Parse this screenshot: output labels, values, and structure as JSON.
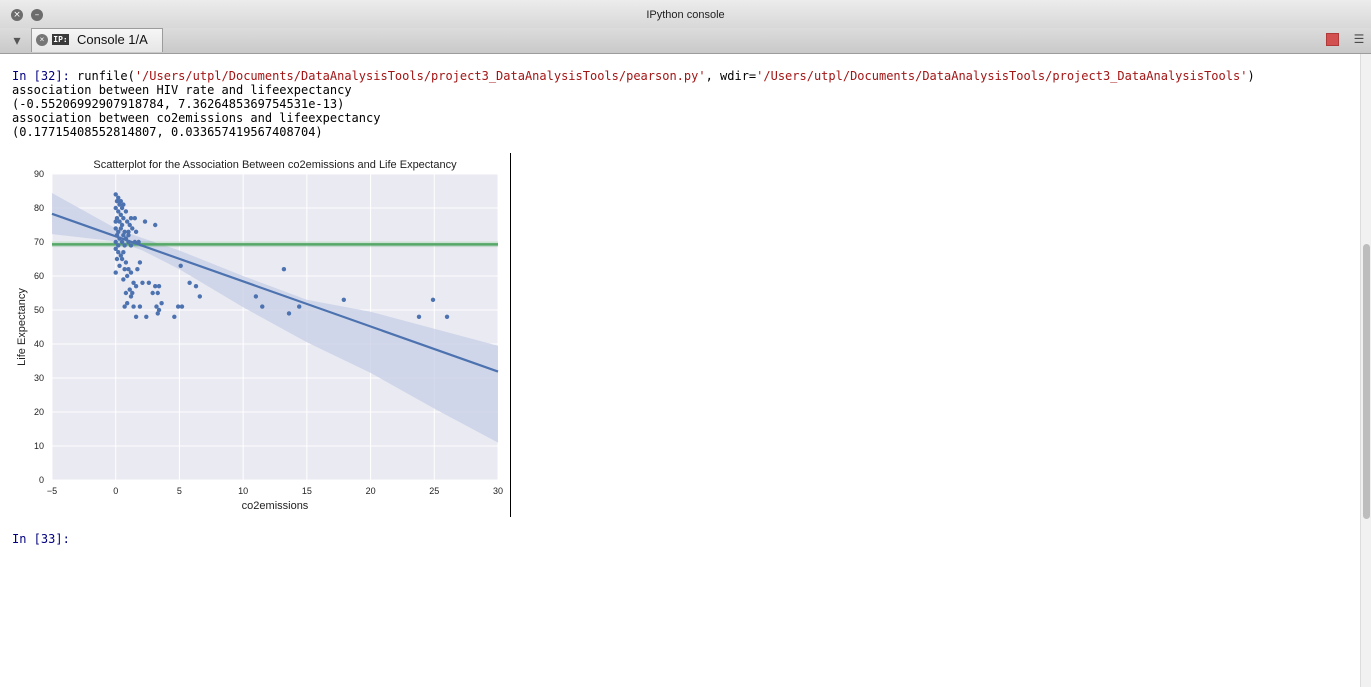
{
  "window": {
    "title": "IPython console",
    "close_glyph": "×",
    "minimize_glyph": "–"
  },
  "tabbar": {
    "options_glyph": "▾",
    "tab_label": "Console 1/A",
    "tab_icon_text": "IP:",
    "tab_close_glyph": "×",
    "menu_glyph": "☰"
  },
  "console": {
    "in32_prompt": "In [32]:",
    "in32_code_prefix": " runfile(",
    "in32_path": "'/Users/utpl/Documents/DataAnalysisTools/project3_DataAnalysisTools/pearson.py'",
    "in32_wdir_label": ", wdir=",
    "in32_wdir": "'/Users/utpl/Documents/DataAnalysisTools/project3_DataAnalysisTools'",
    "in32_close": ")",
    "out_line1": "association between HIV rate and lifeexpectancy",
    "out_line2": "(-0.55206992907918784, 7.3626485369754531e-13)",
    "out_line3": "association between co2emissions and lifeexpectancy",
    "out_line4": "(0.17715408552814807, 0.033657419567408704)",
    "in33_prompt": "In [33]:"
  },
  "colors": {
    "plot_bg": "#eaeaf2",
    "points": "#4c72b0",
    "regression": "#4c72b0",
    "band": "#c7cfe6",
    "mean_line": "#55a868",
    "prompt": "#000080",
    "string": "#a31515",
    "stop_button": "#d25050"
  },
  "chart_data": {
    "type": "scatter",
    "title": "Scatterplot for the Association Between co2emissions and Life Expectancy",
    "xlabel": "co2emissions",
    "ylabel": "Life Expectancy",
    "xlim": [
      -5,
      30
    ],
    "ylim": [
      0,
      90
    ],
    "xticks": [
      -5,
      0,
      5,
      10,
      15,
      20,
      25,
      30
    ],
    "xtick_labels": [
      "−5",
      "0",
      "5",
      "10",
      "15",
      "20",
      "25",
      "30"
    ],
    "yticks": [
      0,
      10,
      20,
      30,
      40,
      50,
      60,
      70,
      80,
      90
    ],
    "ytick_labels": [
      "0",
      "10",
      "20",
      "30",
      "40",
      "50",
      "60",
      "70",
      "80",
      "90"
    ],
    "grid": true,
    "regression_line": {
      "x": [
        -5,
        30
      ],
      "y": [
        78.3,
        31.9
      ]
    },
    "confidence_band": {
      "x": [
        -5,
        0,
        2,
        5,
        10,
        15,
        20,
        25,
        30
      ],
      "upper": [
        84.4,
        74.0,
        71.3,
        67.5,
        60.0,
        53.0,
        49.5,
        44.5,
        39.5
      ],
      "lower": [
        72.3,
        70.2,
        67.7,
        62.0,
        50.8,
        40.5,
        31.5,
        21.0,
        11.0
      ]
    },
    "horizontal_line": {
      "y": 69.3,
      "band": [
        68.5,
        70.2
      ]
    },
    "points": [
      [
        0.0,
        84
      ],
      [
        0.1,
        82
      ],
      [
        0.2,
        83
      ],
      [
        0.3,
        81
      ],
      [
        0.4,
        82
      ],
      [
        0.5,
        80
      ],
      [
        0.6,
        81
      ],
      [
        0.0,
        80
      ],
      [
        0.2,
        79
      ],
      [
        0.4,
        78
      ],
      [
        0.1,
        77
      ],
      [
        0.3,
        76
      ],
      [
        0.6,
        77
      ],
      [
        0.8,
        79
      ],
      [
        0.0,
        76
      ],
      [
        0.5,
        75
      ],
      [
        0.9,
        76
      ],
      [
        1.1,
        75
      ],
      [
        1.5,
        77
      ],
      [
        1.2,
        77
      ],
      [
        0.0,
        74
      ],
      [
        0.2,
        73
      ],
      [
        0.4,
        74
      ],
      [
        0.7,
        73
      ],
      [
        1.0,
        73
      ],
      [
        1.3,
        74
      ],
      [
        1.6,
        73
      ],
      [
        0.1,
        72
      ],
      [
        0.3,
        71
      ],
      [
        0.6,
        72
      ],
      [
        0.8,
        71
      ],
      [
        1.0,
        72
      ],
      [
        0.0,
        70
      ],
      [
        0.2,
        69
      ],
      [
        0.5,
        70
      ],
      [
        0.7,
        69
      ],
      [
        1.0,
        70
      ],
      [
        1.2,
        69
      ],
      [
        1.5,
        70
      ],
      [
        1.8,
        70
      ],
      [
        0.0,
        68
      ],
      [
        0.2,
        67
      ],
      [
        0.4,
        66
      ],
      [
        0.6,
        67
      ],
      [
        0.1,
        65
      ],
      [
        0.5,
        65
      ],
      [
        0.8,
        64
      ],
      [
        0.3,
        63
      ],
      [
        0.7,
        62
      ],
      [
        1.0,
        62
      ],
      [
        0.0,
        61
      ],
      [
        1.2,
        61
      ],
      [
        1.7,
        62
      ],
      [
        1.9,
        64
      ],
      [
        0.6,
        59
      ],
      [
        0.9,
        60
      ],
      [
        1.4,
        58
      ],
      [
        2.1,
        58
      ],
      [
        2.6,
        58
      ],
      [
        0.8,
        55
      ],
      [
        1.1,
        56
      ],
      [
        1.3,
        55
      ],
      [
        1.6,
        57
      ],
      [
        3.1,
        57
      ],
      [
        3.4,
        57
      ],
      [
        2.9,
        55
      ],
      [
        3.3,
        55
      ],
      [
        1.2,
        54
      ],
      [
        0.7,
        51
      ],
      [
        0.9,
        52
      ],
      [
        1.4,
        51
      ],
      [
        1.9,
        51
      ],
      [
        3.6,
        52
      ],
      [
        3.2,
        51
      ],
      [
        3.4,
        50
      ],
      [
        3.3,
        49
      ],
      [
        1.6,
        48
      ],
      [
        2.4,
        48
      ],
      [
        4.6,
        48
      ],
      [
        4.9,
        51
      ],
      [
        5.2,
        51
      ],
      [
        5.8,
        58
      ],
      [
        5.1,
        63
      ],
      [
        6.3,
        57
      ],
      [
        6.6,
        54
      ],
      [
        2.3,
        76
      ],
      [
        3.1,
        75
      ],
      [
        11.0,
        54
      ],
      [
        11.5,
        51
      ],
      [
        13.2,
        62
      ],
      [
        13.6,
        49
      ],
      [
        14.4,
        51
      ],
      [
        17.9,
        53
      ],
      [
        23.8,
        48
      ],
      [
        24.9,
        53
      ],
      [
        26.0,
        48
      ]
    ]
  }
}
